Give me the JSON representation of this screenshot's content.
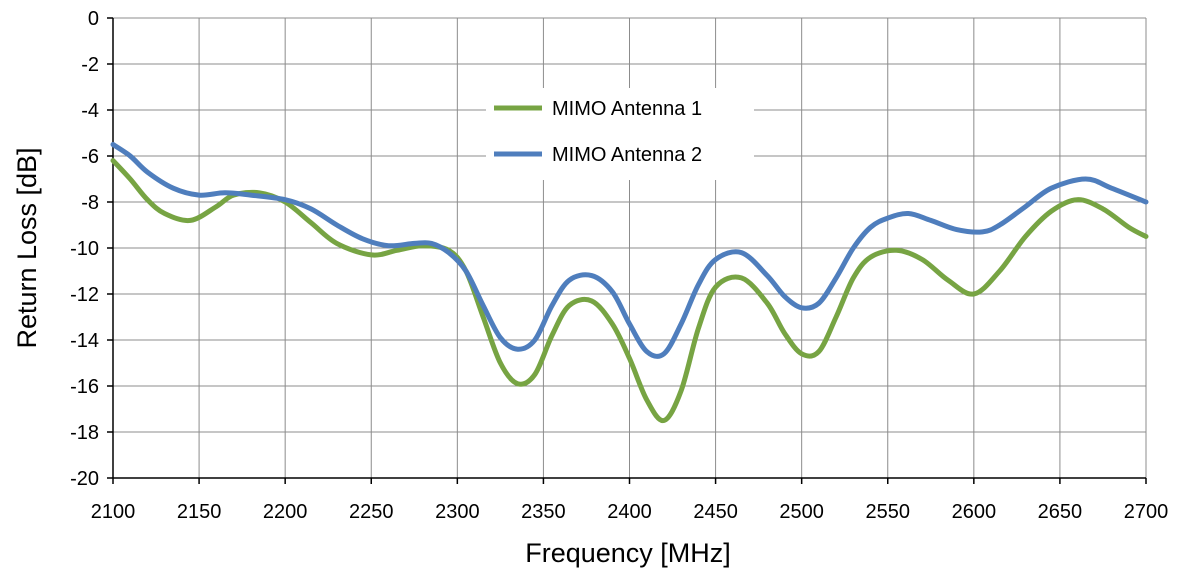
{
  "chart_data": {
    "type": "line",
    "title": "",
    "xlabel": "Frequency [MHz]",
    "ylabel": "Return  Loss [dB]",
    "xlim": [
      2100,
      2700
    ],
    "ylim": [
      -20,
      0
    ],
    "x_ticks": [
      2100,
      2150,
      2200,
      2250,
      2300,
      2350,
      2400,
      2450,
      2500,
      2550,
      2600,
      2650,
      2700
    ],
    "y_ticks": [
      0,
      -2,
      -4,
      -6,
      -8,
      -10,
      -12,
      -14,
      -16,
      -18,
      -20
    ],
    "grid": true,
    "legend_position": "top-center",
    "series": [
      {
        "name": "MIMO Antenna 1",
        "color": "#77a443",
        "x": [
          2100,
          2110,
          2120,
          2130,
          2145,
          2160,
          2170,
          2185,
          2200,
          2215,
          2230,
          2250,
          2265,
          2280,
          2295,
          2305,
          2315,
          2325,
          2335,
          2345,
          2355,
          2365,
          2378,
          2390,
          2400,
          2410,
          2420,
          2430,
          2440,
          2450,
          2465,
          2480,
          2490,
          2500,
          2510,
          2520,
          2530,
          2540,
          2555,
          2570,
          2585,
          2600,
          2615,
          2630,
          2645,
          2660,
          2675,
          2690,
          2700
        ],
        "y": [
          -6.2,
          -7.0,
          -7.9,
          -8.5,
          -8.8,
          -8.2,
          -7.7,
          -7.6,
          -8.0,
          -8.9,
          -9.8,
          -10.3,
          -10.1,
          -9.9,
          -10.1,
          -11.0,
          -13.0,
          -15.0,
          -15.9,
          -15.5,
          -13.8,
          -12.5,
          -12.3,
          -13.3,
          -14.8,
          -16.6,
          -17.5,
          -16.2,
          -13.5,
          -11.7,
          -11.3,
          -12.4,
          -13.7,
          -14.6,
          -14.5,
          -13.0,
          -11.3,
          -10.4,
          -10.1,
          -10.5,
          -11.4,
          -12.0,
          -11.0,
          -9.5,
          -8.4,
          -7.9,
          -8.3,
          -9.1,
          -9.5
        ]
      },
      {
        "name": "MIMO Antenna 2",
        "color": "#4f7ebd",
        "x": [
          2100,
          2110,
          2120,
          2135,
          2150,
          2165,
          2180,
          2200,
          2215,
          2230,
          2245,
          2260,
          2275,
          2285,
          2295,
          2305,
          2315,
          2325,
          2335,
          2345,
          2355,
          2365,
          2378,
          2390,
          2400,
          2410,
          2420,
          2430,
          2440,
          2450,
          2465,
          2480,
          2490,
          2500,
          2510,
          2520,
          2530,
          2540,
          2550,
          2562,
          2575,
          2590,
          2605,
          2615,
          2630,
          2645,
          2665,
          2680,
          2700
        ],
        "y": [
          -5.5,
          -6.0,
          -6.7,
          -7.4,
          -7.7,
          -7.6,
          -7.7,
          -7.9,
          -8.3,
          -9.0,
          -9.6,
          -9.9,
          -9.8,
          -9.8,
          -10.2,
          -11.0,
          -12.5,
          -13.9,
          -14.4,
          -14.0,
          -12.5,
          -11.4,
          -11.2,
          -11.9,
          -13.3,
          -14.5,
          -14.6,
          -13.3,
          -11.6,
          -10.5,
          -10.2,
          -11.2,
          -12.1,
          -12.6,
          -12.4,
          -11.3,
          -10.0,
          -9.1,
          -8.7,
          -8.5,
          -8.8,
          -9.2,
          -9.3,
          -9.0,
          -8.2,
          -7.4,
          -7.0,
          -7.4,
          -8.0
        ]
      }
    ]
  }
}
